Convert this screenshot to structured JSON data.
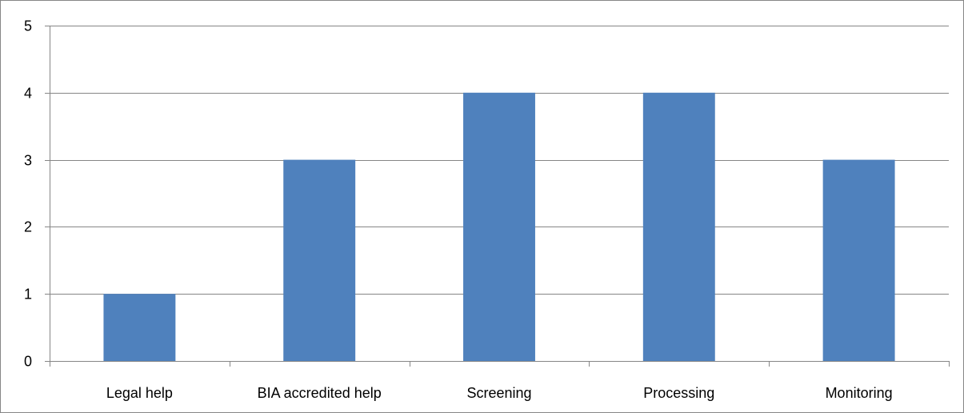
{
  "chart_data": {
    "type": "bar",
    "categories": [
      "Legal help",
      "BIA accredited help",
      "Screening",
      "Processing",
      "Monitoring"
    ],
    "values": [
      1,
      3,
      4,
      4,
      3
    ],
    "title": "",
    "xlabel": "",
    "ylabel": "",
    "ylim": [
      0,
      5
    ],
    "yticks": [
      "0",
      "1",
      "2",
      "3",
      "4",
      "5"
    ],
    "grid": true,
    "legend": "none",
    "bar_color": "#4F81BD",
    "grid_color": "#868686"
  }
}
